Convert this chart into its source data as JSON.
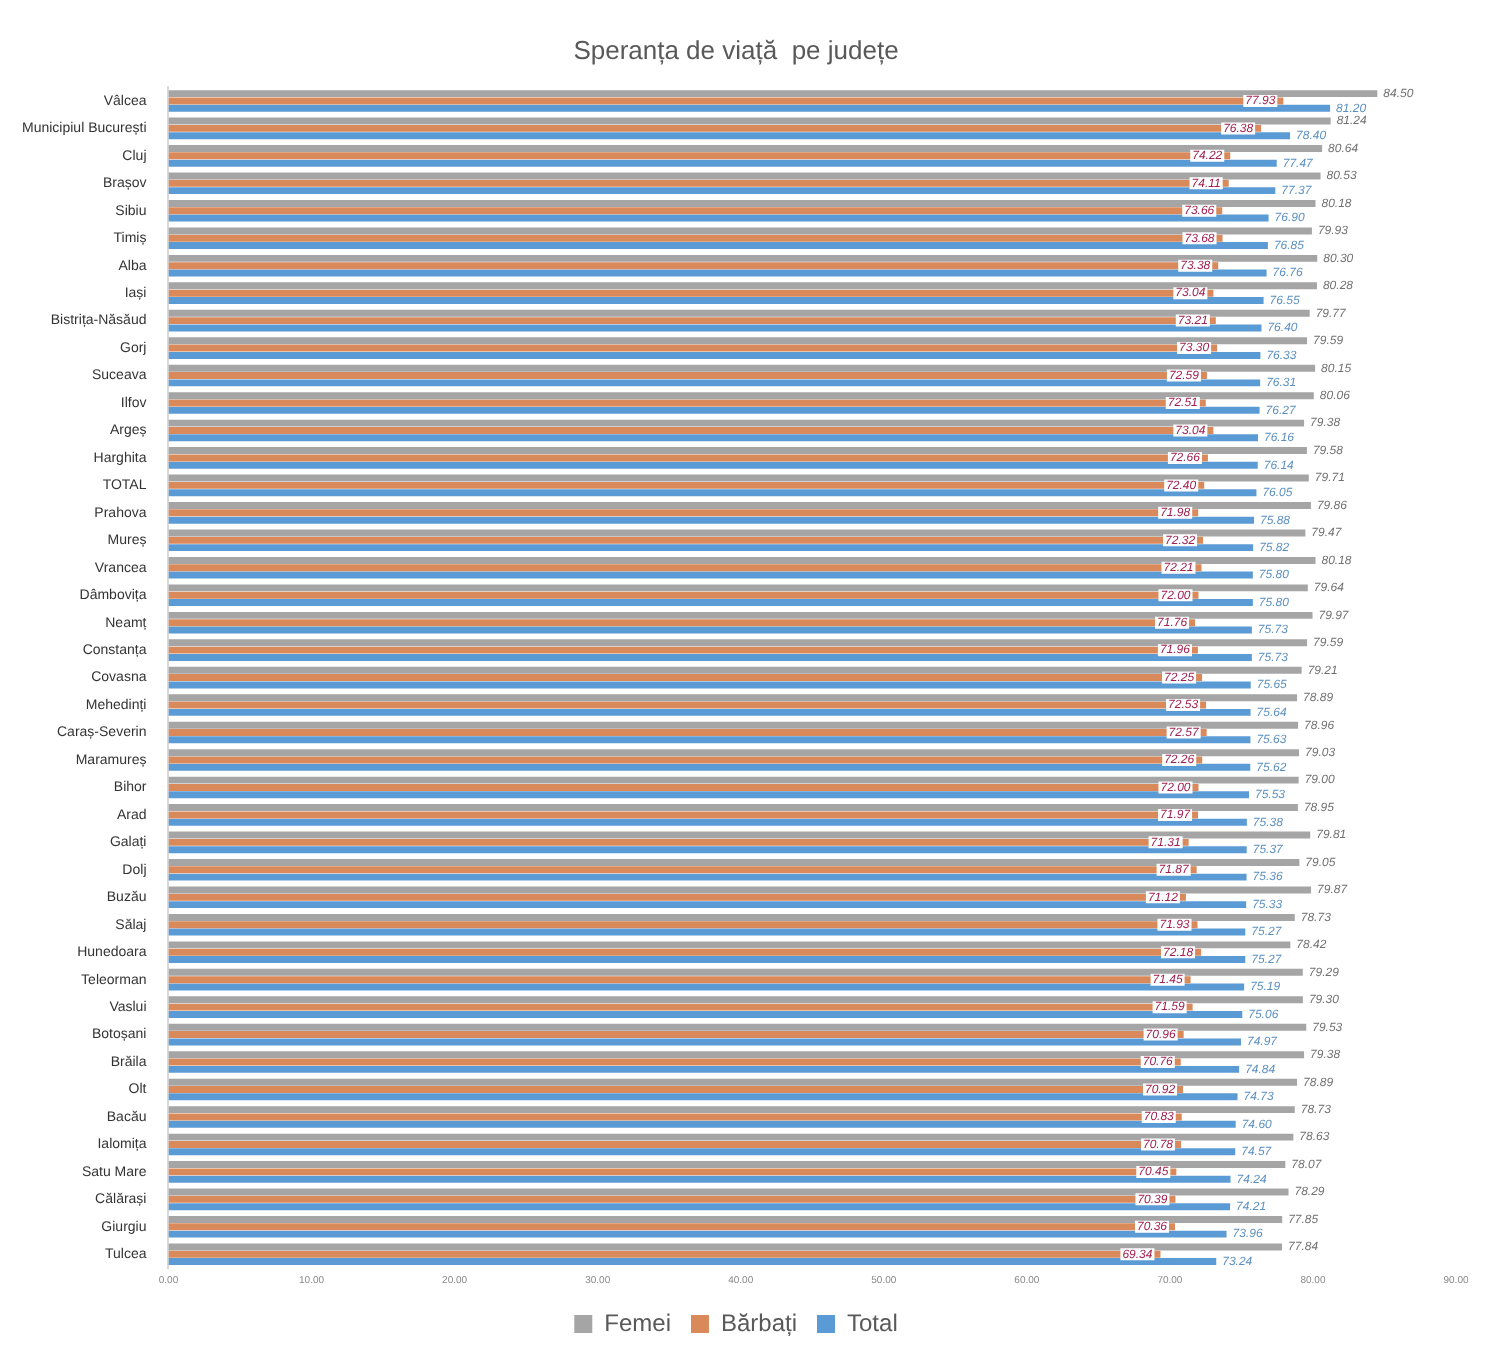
{
  "chart_data": {
    "type": "bar",
    "orientation": "horizontal",
    "title": "Speranța de viață  pe județe",
    "categories": [
      "Vâlcea",
      "Municipiul București",
      "Cluj",
      "Brașov",
      "Sibiu",
      "Timiș",
      "Alba",
      "Iași",
      "Bistrița-Năsăud",
      "Gorj",
      "Suceava",
      "Ilfov",
      "Argeș",
      "Harghita",
      "TOTAL",
      "Prahova",
      "Mureș",
      "Vrancea",
      "Dâmbovița",
      "Neamț",
      "Constanța",
      "Covasna",
      "Mehedinți",
      "Caraș-Severin",
      "Maramureș",
      "Bihor",
      "Arad",
      "Galați",
      "Dolj",
      "Buzău",
      "Sălaj",
      "Hunedoara",
      "Teleorman",
      "Vaslui",
      "Botoșani",
      "Brăila",
      "Olt",
      "Bacău",
      "Ialomița",
      "Satu Mare",
      "Călărași",
      "Giurgiu",
      "Tulcea"
    ],
    "series": [
      {
        "name": "Femei",
        "color": "#a5a5a5",
        "values": [
          84.5,
          81.24,
          80.64,
          80.53,
          80.18,
          79.93,
          80.3,
          80.28,
          79.77,
          79.59,
          80.15,
          80.06,
          79.38,
          79.58,
          79.71,
          79.86,
          79.47,
          80.18,
          79.64,
          79.97,
          79.59,
          79.21,
          78.89,
          78.96,
          79.03,
          79.0,
          78.95,
          79.81,
          79.05,
          79.87,
          78.73,
          78.42,
          79.29,
          79.3,
          79.53,
          79.38,
          78.89,
          78.73,
          78.63,
          78.07,
          78.29,
          77.85,
          77.84
        ],
        "value_labels": [
          "84.50",
          "81.24",
          "80.64",
          "80.53",
          "80.18",
          "79.93",
          "80.30",
          "80.28",
          "79.77",
          "79.59",
          "80.15",
          "80.06",
          "79.38",
          "79.58",
          "79.71",
          "79.86",
          "79.47",
          "80.18",
          "79.64",
          "79.97",
          "79.59",
          "79.21",
          "78.89",
          "78.96",
          "79.03",
          "79.00",
          "78.95",
          "79.81",
          "79.05",
          "79.87",
          "78.73",
          "78.42",
          "79.29",
          "79.30",
          "79.53",
          "79.38",
          "78.89",
          "78.73",
          "78.63",
          "78.07",
          "78.29",
          "77.85",
          "77.84"
        ]
      },
      {
        "name": "Bărbați",
        "color": "#d9895a",
        "values": [
          77.93,
          76.38,
          74.22,
          74.11,
          73.66,
          73.68,
          73.38,
          73.04,
          73.21,
          73.3,
          72.59,
          72.51,
          73.04,
          72.66,
          72.4,
          71.98,
          72.32,
          72.21,
          72.0,
          71.76,
          71.96,
          72.25,
          72.53,
          72.57,
          72.26,
          72.0,
          71.97,
          71.31,
          71.87,
          71.12,
          71.93,
          72.18,
          71.45,
          71.59,
          70.96,
          70.76,
          70.92,
          70.83,
          70.78,
          70.45,
          70.39,
          70.36,
          69.34
        ],
        "value_labels": [
          "77.93",
          "76.38",
          "74.22",
          "74.11",
          "73.66",
          "73.68",
          "73.38",
          "73.04",
          "73.21",
          "73.30",
          "72.59",
          "72.51",
          "73.04",
          "72.66",
          "72.40",
          "71.98",
          "72.32",
          "72.21",
          "72.00",
          "71.76",
          "71.96",
          "72.25",
          "72.53",
          "72.57",
          "72.26",
          "72.00",
          "71.97",
          "71.31",
          "71.87",
          "71.12",
          "71.93",
          "72.18",
          "71.45",
          "71.59",
          "70.96",
          "70.76",
          "70.92",
          "70.83",
          "70.78",
          "70.45",
          "70.39",
          "70.36",
          "69.34"
        ]
      },
      {
        "name": "Total",
        "color": "#5b9bd5",
        "values": [
          81.2,
          78.4,
          77.47,
          77.37,
          76.9,
          76.85,
          76.76,
          76.55,
          76.4,
          76.33,
          76.31,
          76.27,
          76.16,
          76.14,
          76.05,
          75.88,
          75.82,
          75.8,
          75.8,
          75.73,
          75.73,
          75.65,
          75.64,
          75.63,
          75.62,
          75.53,
          75.38,
          75.37,
          75.36,
          75.33,
          75.27,
          75.27,
          75.19,
          75.06,
          74.97,
          74.84,
          74.73,
          74.6,
          74.57,
          74.24,
          74.21,
          73.96,
          73.24
        ],
        "value_labels": [
          "81.20",
          "78.40",
          "77.47",
          "77.37",
          "76.90",
          "76.85",
          "76.76",
          "76.55",
          "76.40",
          "76.33",
          "76.31",
          "76.27",
          "76.16",
          "76.14",
          "76.05",
          "75.88",
          "75.82",
          "75.80",
          "75.80",
          "75.73",
          "75.73",
          "75.65",
          "75.64",
          "75.63",
          "75.62",
          "75.53",
          "75.38",
          "75.37",
          "75.36",
          "75.33",
          "75.27",
          "75.27",
          "75.19",
          "75.06",
          "74.97",
          "74.84",
          "74.73",
          "74.60",
          "74.57",
          "74.24",
          "74.21",
          "73.96",
          "73.24"
        ]
      }
    ],
    "xlim": [
      0,
      90
    ],
    "xticks": [
      {
        "value": 0,
        "label": "0.00"
      },
      {
        "value": 10,
        "label": "10.00"
      },
      {
        "value": 20,
        "label": "20.00"
      },
      {
        "value": 30,
        "label": "30.00"
      },
      {
        "value": 40,
        "label": "40.00"
      },
      {
        "value": 50,
        "label": "50.00"
      },
      {
        "value": 60,
        "label": "60.00"
      },
      {
        "value": 70,
        "label": "70.00"
      },
      {
        "value": 80,
        "label": "80.00"
      },
      {
        "value": 90,
        "label": "90.00"
      }
    ],
    "legend": "bottom",
    "grid": false
  }
}
